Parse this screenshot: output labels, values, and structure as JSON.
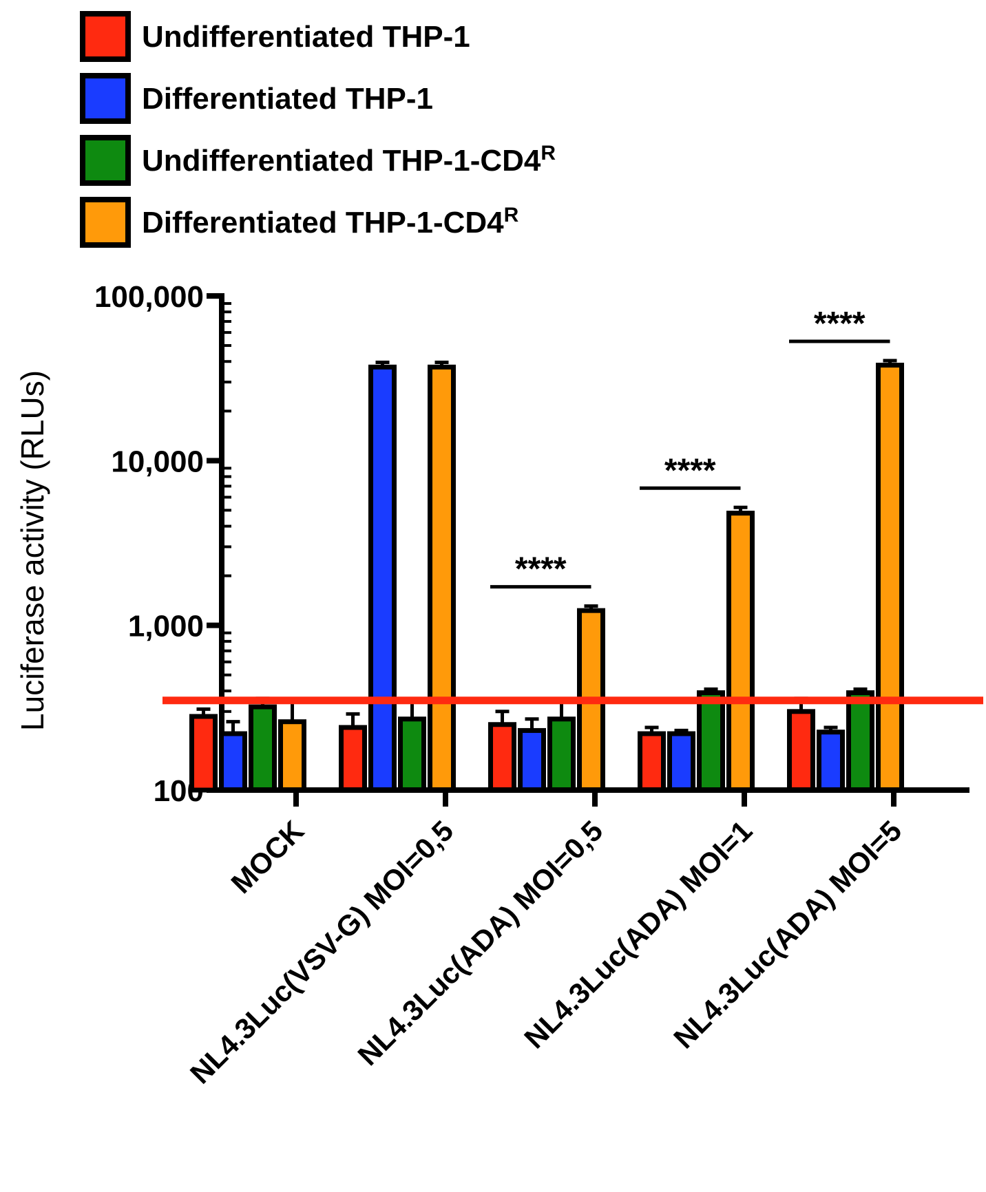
{
  "chart_data": {
    "type": "bar",
    "title": "",
    "xlabel": "",
    "ylabel": "Luciferase activity (RLUs)",
    "yscale": "log",
    "ylim": [
      100,
      100000
    ],
    "yticks": [
      {
        "value": 100,
        "label": "100"
      },
      {
        "value": 1000,
        "label": "1,000"
      },
      {
        "value": 10000,
        "label": "10,000"
      },
      {
        "value": 100000,
        "label": "100,000"
      }
    ],
    "categories": [
      "MOCK",
      "NL4.3Luc(VSV-G) MOI=0,5",
      "NL4.3Luc(ADA) MOI=0,5",
      "NL4.3Luc(ADA) MOI=1",
      "NL4.3Luc(ADA) MOI=5"
    ],
    "series": [
      {
        "name": "Undifferentiated THP-1",
        "color": "#ff2a10",
        "values": [
          280,
          240,
          250,
          220,
          300
        ],
        "errors": [
          30,
          50,
          50,
          20,
          60
        ]
      },
      {
        "name": "Differentiated THP-1",
        "color": "#1a3cff",
        "values": [
          220,
          37000,
          230,
          220,
          225
        ],
        "errors": [
          40,
          2500,
          40,
          10,
          15
        ]
      },
      {
        "name": "Undifferentiated THP-1-CD4",
        "sup": "R",
        "color": "#0e8a10",
        "values": [
          320,
          270,
          270,
          390,
          390
        ],
        "errors": [
          40,
          80,
          80,
          20,
          20
        ]
      },
      {
        "name": "Differentiated THP-1-CD4",
        "sup": "R",
        "color": "#ff9a0a",
        "values": [
          260,
          37000,
          1230,
          4800,
          38000
        ],
        "errors": [
          90,
          2500,
          80,
          400,
          2500
        ]
      }
    ],
    "threshold": {
      "value": 350,
      "color": "#ff2a10"
    },
    "significance": [
      {
        "category": 2,
        "text": "****"
      },
      {
        "category": 3,
        "text": "****"
      },
      {
        "category": 4,
        "text": "****"
      }
    ],
    "legend_position": "top-left"
  }
}
